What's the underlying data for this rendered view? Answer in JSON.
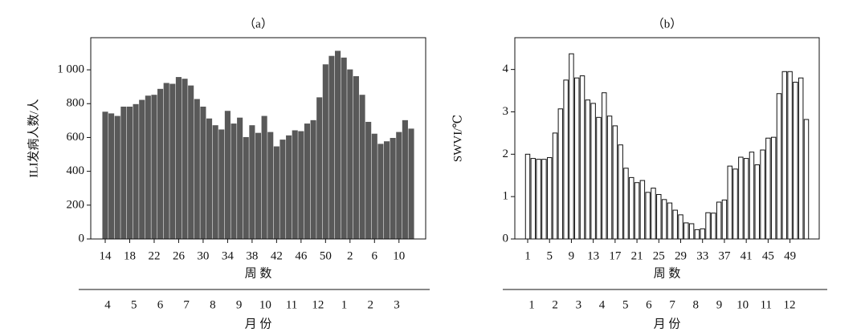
{
  "chart_data": [
    {
      "type": "bar",
      "title": "（a）",
      "ylabel": "ILI发病人数/人",
      "xlabel": "周 数",
      "month_title": "月 份",
      "categories": [
        14,
        null,
        null,
        null,
        18,
        null,
        null,
        null,
        22,
        null,
        null,
        null,
        26,
        null,
        null,
        null,
        30,
        null,
        null,
        null,
        34,
        null,
        null,
        null,
        38,
        null,
        null,
        null,
        42,
        null,
        null,
        null,
        46,
        null,
        null,
        null,
        50,
        null,
        null,
        null,
        2,
        null,
        null,
        null,
        6,
        null,
        null,
        null,
        10,
        null,
        null
      ],
      "values": [
        750,
        740,
        725,
        780,
        780,
        795,
        820,
        845,
        850,
        885,
        920,
        915,
        955,
        945,
        905,
        825,
        780,
        710,
        670,
        645,
        755,
        680,
        715,
        600,
        670,
        625,
        725,
        630,
        545,
        585,
        610,
        640,
        635,
        680,
        700,
        835,
        1030,
        1080,
        1110,
        1070,
        1000,
        960,
        850,
        690,
        620,
        560,
        575,
        595,
        630,
        700,
        650
      ],
      "months": [
        4,
        5,
        6,
        7,
        8,
        9,
        10,
        11,
        12,
        1,
        2,
        3
      ],
      "color": "#595959",
      "edgecolor": "#595959",
      "ylim": [
        0,
        1190
      ],
      "yticks": [
        0,
        200,
        400,
        600,
        800,
        {
          "value": 1000,
          "label": "1 000"
        }
      ]
    },
    {
      "type": "bar",
      "title": "（b）",
      "ylabel": "SWVI/℃",
      "xlabel": "周 数",
      "month_title": "月 份",
      "categories": [
        1,
        null,
        null,
        null,
        5,
        null,
        null,
        null,
        9,
        null,
        null,
        null,
        13,
        null,
        null,
        null,
        17,
        null,
        null,
        null,
        21,
        null,
        null,
        null,
        25,
        null,
        null,
        null,
        29,
        null,
        null,
        null,
        33,
        null,
        null,
        null,
        37,
        null,
        null,
        null,
        41,
        null,
        null,
        null,
        45,
        null,
        null,
        null,
        49,
        null,
        null,
        null
      ],
      "values": [
        2.0,
        1.9,
        1.88,
        1.88,
        1.92,
        2.5,
        3.07,
        3.75,
        4.37,
        3.8,
        3.85,
        3.28,
        3.2,
        2.87,
        3.45,
        2.9,
        2.67,
        2.22,
        1.67,
        1.45,
        1.33,
        1.38,
        1.1,
        1.2,
        1.05,
        0.93,
        0.85,
        0.68,
        0.57,
        0.38,
        0.36,
        0.22,
        0.24,
        0.62,
        0.61,
        0.87,
        0.92,
        1.72,
        1.65,
        1.93,
        1.9,
        2.05,
        1.75,
        2.1,
        2.38,
        2.4,
        3.43,
        3.95,
        3.95,
        3.7,
        3.8,
        2.82
      ],
      "months": [
        1,
        2,
        3,
        4,
        5,
        6,
        7,
        8,
        9,
        10,
        11,
        12
      ],
      "color": "#ffffff",
      "edgecolor": "#111111",
      "ylim": [
        0,
        4.75
      ],
      "yticks": [
        0,
        1,
        2,
        3,
        4
      ]
    }
  ]
}
